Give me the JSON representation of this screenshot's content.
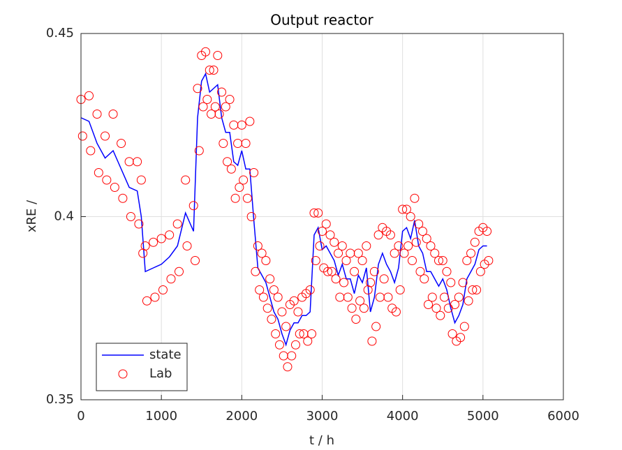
{
  "chart_data": {
    "type": "line",
    "title": "Output reactor",
    "xlabel": "t / h",
    "ylabel": "xRE /",
    "xlim": [
      0,
      6000
    ],
    "xticks": [
      0,
      1000,
      2000,
      3000,
      4000,
      5000,
      6000
    ],
    "ylim": [
      0.35,
      0.45
    ],
    "yticks": [
      0.35,
      0.4,
      0.45
    ],
    "grid": true,
    "legend": "southwest",
    "series": [
      {
        "name": "state",
        "color": "#0000ff",
        "linestyle": "-",
        "x": [
          0,
          100,
          200,
          300,
          400,
          500,
          600,
          700,
          750,
          800,
          900,
          1000,
          1100,
          1200,
          1300,
          1400,
          1450,
          1500,
          1550,
          1600,
          1650,
          1700,
          1750,
          1800,
          1850,
          1900,
          1950,
          2000,
          2050,
          2100,
          2150,
          2200,
          2250,
          2300,
          2350,
          2400,
          2450,
          2500,
          2550,
          2600,
          2650,
          2700,
          2750,
          2800,
          2850,
          2900,
          2950,
          3000,
          3050,
          3100,
          3150,
          3200,
          3250,
          3300,
          3350,
          3400,
          3450,
          3500,
          3550,
          3600,
          3650,
          3700,
          3750,
          3800,
          3850,
          3900,
          3950,
          4000,
          4050,
          4100,
          4150,
          4200,
          4250,
          4300,
          4350,
          4400,
          4450,
          4500,
          4550,
          4600,
          4650,
          4700,
          4750,
          4800,
          4850,
          4900,
          4950,
          5000,
          5050
        ],
        "values": [
          0.427,
          0.426,
          0.42,
          0.416,
          0.418,
          0.413,
          0.408,
          0.407,
          0.4,
          0.385,
          0.386,
          0.387,
          0.389,
          0.392,
          0.401,
          0.396,
          0.427,
          0.437,
          0.439,
          0.434,
          0.435,
          0.436,
          0.427,
          0.423,
          0.423,
          0.415,
          0.414,
          0.418,
          0.413,
          0.413,
          0.399,
          0.386,
          0.384,
          0.382,
          0.378,
          0.374,
          0.372,
          0.368,
          0.365,
          0.369,
          0.371,
          0.371,
          0.373,
          0.373,
          0.374,
          0.395,
          0.397,
          0.391,
          0.392,
          0.39,
          0.388,
          0.384,
          0.387,
          0.383,
          0.383,
          0.379,
          0.384,
          0.382,
          0.386,
          0.374,
          0.378,
          0.387,
          0.39,
          0.387,
          0.385,
          0.382,
          0.386,
          0.396,
          0.397,
          0.394,
          0.399,
          0.392,
          0.39,
          0.385,
          0.385,
          0.383,
          0.381,
          0.383,
          0.38,
          0.375,
          0.371,
          0.373,
          0.376,
          0.383,
          0.385,
          0.387,
          0.391,
          0.392,
          0.392
        ]
      },
      {
        "name": "Lab",
        "color": "#ff0000",
        "marker": "o",
        "linestyle": "none",
        "x": [
          0,
          20,
          100,
          120,
          200,
          220,
          300,
          320,
          400,
          420,
          500,
          520,
          600,
          620,
          700,
          720,
          750,
          770,
          800,
          820,
          900,
          920,
          1000,
          1020,
          1100,
          1120,
          1200,
          1220,
          1300,
          1320,
          1400,
          1420,
          1450,
          1470,
          1500,
          1520,
          1550,
          1570,
          1600,
          1620,
          1650,
          1670,
          1700,
          1720,
          1750,
          1770,
          1800,
          1820,
          1850,
          1870,
          1900,
          1920,
          1950,
          1970,
          2000,
          2020,
          2050,
          2070,
          2100,
          2120,
          2150,
          2170,
          2200,
          2220,
          2250,
          2270,
          2300,
          2320,
          2350,
          2370,
          2400,
          2420,
          2450,
          2470,
          2500,
          2520,
          2550,
          2570,
          2600,
          2620,
          2650,
          2670,
          2700,
          2720,
          2750,
          2770,
          2800,
          2820,
          2850,
          2870,
          2900,
          2920,
          2950,
          2970,
          3000,
          3020,
          3050,
          3070,
          3100,
          3120,
          3150,
          3170,
          3200,
          3220,
          3250,
          3270,
          3300,
          3320,
          3350,
          3370,
          3400,
          3420,
          3450,
          3470,
          3500,
          3520,
          3550,
          3570,
          3600,
          3620,
          3650,
          3670,
          3700,
          3720,
          3750,
          3770,
          3800,
          3820,
          3850,
          3870,
          3900,
          3920,
          3950,
          3970,
          4000,
          4020,
          4050,
          4070,
          4100,
          4120,
          4150,
          4170,
          4200,
          4220,
          4250,
          4270,
          4300,
          4320,
          4350,
          4370,
          4400,
          4420,
          4450,
          4470,
          4500,
          4520,
          4550,
          4570,
          4600,
          4620,
          4650,
          4670,
          4700,
          4720,
          4750,
          4770,
          4800,
          4820,
          4850,
          4870,
          4900,
          4920,
          4950,
          4970,
          5000,
          5020,
          5050,
          5070
        ],
        "values": [
          0.432,
          0.422,
          0.433,
          0.418,
          0.428,
          0.412,
          0.422,
          0.41,
          0.428,
          0.408,
          0.42,
          0.405,
          0.415,
          0.4,
          0.415,
          0.398,
          0.41,
          0.39,
          0.392,
          0.377,
          0.393,
          0.378,
          0.394,
          0.38,
          0.395,
          0.383,
          0.398,
          0.385,
          0.41,
          0.392,
          0.403,
          0.388,
          0.435,
          0.418,
          0.444,
          0.43,
          0.445,
          0.432,
          0.44,
          0.428,
          0.44,
          0.43,
          0.444,
          0.428,
          0.434,
          0.42,
          0.43,
          0.415,
          0.432,
          0.413,
          0.425,
          0.405,
          0.42,
          0.408,
          0.425,
          0.41,
          0.42,
          0.405,
          0.426,
          0.4,
          0.412,
          0.385,
          0.392,
          0.38,
          0.39,
          0.378,
          0.388,
          0.375,
          0.383,
          0.372,
          0.38,
          0.368,
          0.378,
          0.365,
          0.374,
          0.362,
          0.37,
          0.359,
          0.376,
          0.362,
          0.377,
          0.365,
          0.374,
          0.368,
          0.378,
          0.368,
          0.379,
          0.366,
          0.38,
          0.368,
          0.401,
          0.388,
          0.401,
          0.392,
          0.396,
          0.386,
          0.398,
          0.385,
          0.395,
          0.385,
          0.393,
          0.383,
          0.39,
          0.378,
          0.392,
          0.382,
          0.388,
          0.378,
          0.39,
          0.375,
          0.385,
          0.372,
          0.39,
          0.377,
          0.388,
          0.375,
          0.392,
          0.38,
          0.382,
          0.366,
          0.385,
          0.37,
          0.395,
          0.378,
          0.397,
          0.383,
          0.396,
          0.378,
          0.395,
          0.375,
          0.39,
          0.374,
          0.392,
          0.38,
          0.402,
          0.39,
          0.402,
          0.392,
          0.4,
          0.388,
          0.405,
          0.393,
          0.398,
          0.385,
          0.396,
          0.383,
          0.394,
          0.376,
          0.392,
          0.378,
          0.39,
          0.375,
          0.388,
          0.373,
          0.388,
          0.378,
          0.385,
          0.375,
          0.382,
          0.368,
          0.376,
          0.366,
          0.378,
          0.367,
          0.382,
          0.37,
          0.388,
          0.377,
          0.39,
          0.38,
          0.393,
          0.38,
          0.396,
          0.385,
          0.397,
          0.387,
          0.396,
          0.388
        ]
      }
    ]
  }
}
